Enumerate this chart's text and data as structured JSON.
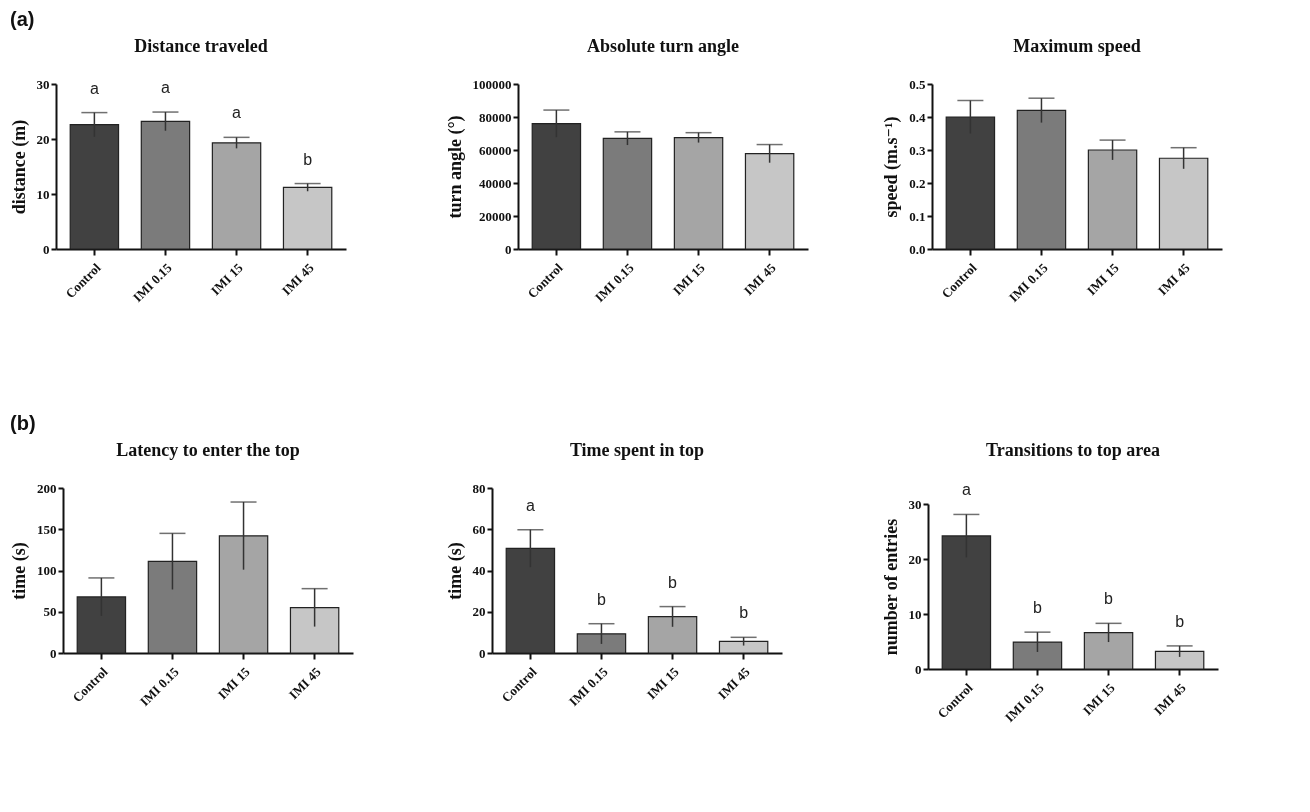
{
  "chart_data": [
    {
      "type": "bar",
      "title": "Distance traveled",
      "ylabel": "distance (m)",
      "categories": [
        "Control",
        "IMI 0.15",
        "IMI 15",
        "IMI 45"
      ],
      "values": [
        22.6,
        23.2,
        19.3,
        11.2
      ],
      "errors": [
        2.2,
        1.7,
        1.0,
        0.7
      ],
      "colors": [
        "#414141",
        "#7b7b7b",
        "#a5a5a5",
        "#c6c6c6"
      ],
      "ylim": [
        0,
        30
      ],
      "yticks": [
        0,
        10,
        20,
        30
      ],
      "grid": false,
      "legend": false,
      "annotations": [
        "(a)",
        {
          "text": "a",
          "x": "Control",
          "y": 24.8
        },
        {
          "text": "a",
          "x": "IMI 0.15",
          "y": 24.9
        },
        {
          "text": "a",
          "x": "IMI 15",
          "y": 20.3
        },
        {
          "text": "b",
          "x": "IMI 45",
          "y": 11.9
        }
      ]
    },
    {
      "type": "bar",
      "title": "Absolute turn angle",
      "ylabel": "turn angle (°)",
      "categories": [
        "Control",
        "IMI 0.15",
        "IMI 15",
        "IMI 45"
      ],
      "values": [
        76000,
        67000,
        67500,
        57800
      ],
      "errors": [
        8200,
        4000,
        3000,
        5500
      ],
      "colors": [
        "#414141",
        "#7b7b7b",
        "#a5a5a5",
        "#c6c6c6"
      ],
      "ylim": [
        0,
        100000
      ],
      "yticks": [
        0,
        20000,
        40000,
        60000,
        80000,
        100000
      ],
      "grid": false,
      "legend": false
    },
    {
      "type": "bar",
      "title": "Maximum speed",
      "ylabel": "speed (m.s⁻¹)",
      "categories": [
        "Control",
        "IMI 0.15",
        "IMI 15",
        "IMI 45"
      ],
      "values": [
        0.4,
        0.42,
        0.3,
        0.275
      ],
      "errors": [
        0.05,
        0.037,
        0.03,
        0.032
      ],
      "colors": [
        "#414141",
        "#7b7b7b",
        "#a5a5a5",
        "#c6c6c6"
      ],
      "ylim": [
        0,
        0.5
      ],
      "yticks": [
        {
          "value": 0,
          "label": "0.0"
        },
        0.1,
        0.2,
        0.3,
        0.4,
        0.5
      ],
      "grid": false,
      "legend": false
    },
    {
      "type": "bar",
      "title": "Latency to enter the top",
      "ylabel": "time (s)",
      "categories": [
        "Control",
        "IMI 0.15",
        "IMI 15",
        "IMI 45"
      ],
      "values": [
        68,
        111,
        142,
        55
      ],
      "errors": [
        23,
        34,
        41,
        23
      ],
      "colors": [
        "#414141",
        "#7b7b7b",
        "#a5a5a5",
        "#c6c6c6"
      ],
      "ylim": [
        0,
        200
      ],
      "yticks": [
        0,
        50,
        100,
        150,
        200
      ],
      "grid": false,
      "legend": false,
      "annotations": [
        "(b)"
      ]
    },
    {
      "type": "bar",
      "title": "Time spent in top",
      "ylabel": "time (s)",
      "categories": [
        "Control",
        "IMI 0.15",
        "IMI 15",
        "IMI 45"
      ],
      "values": [
        50.7,
        9.3,
        17.6,
        5.6
      ],
      "errors": [
        9.1,
        4.9,
        4.9,
        2.0
      ],
      "colors": [
        "#414141",
        "#7b7b7b",
        "#a5a5a5",
        "#c6c6c6"
      ],
      "ylim": [
        0,
        80
      ],
      "yticks": [
        0,
        20,
        40,
        60,
        80
      ],
      "grid": false,
      "legend": false,
      "annotations": [
        {
          "text": "a",
          "x": "Control",
          "y": 59.8
        },
        {
          "text": "b",
          "x": "IMI 0.15",
          "y": 14.2
        },
        {
          "text": "b",
          "x": "IMI 15",
          "y": 22.5
        },
        {
          "text": "b",
          "x": "IMI 45",
          "y": 7.6
        }
      ]
    },
    {
      "type": "bar",
      "title": "Transitions to top area",
      "ylabel": "number of entries",
      "categories": [
        "Control",
        "IMI 0.15",
        "IMI 15",
        "IMI 45"
      ],
      "values": [
        24.2,
        4.9,
        6.6,
        3.2
      ],
      "errors": [
        3.9,
        1.8,
        1.7,
        1.0
      ],
      "colors": [
        "#414141",
        "#7b7b7b",
        "#a5a5a5",
        "#c6c6c6"
      ],
      "ylim": [
        0,
        30
      ],
      "yticks": [
        0,
        10,
        20,
        30
      ],
      "grid": false,
      "legend": false,
      "annotations": [
        {
          "text": "a",
          "x": "Control",
          "y": 28.1
        },
        {
          "text": "b",
          "x": "IMI 0.15",
          "y": 6.7
        },
        {
          "text": "b",
          "x": "IMI 15",
          "y": 8.3
        },
        {
          "text": "b",
          "x": "IMI 45",
          "y": 4.2
        }
      ]
    }
  ]
}
